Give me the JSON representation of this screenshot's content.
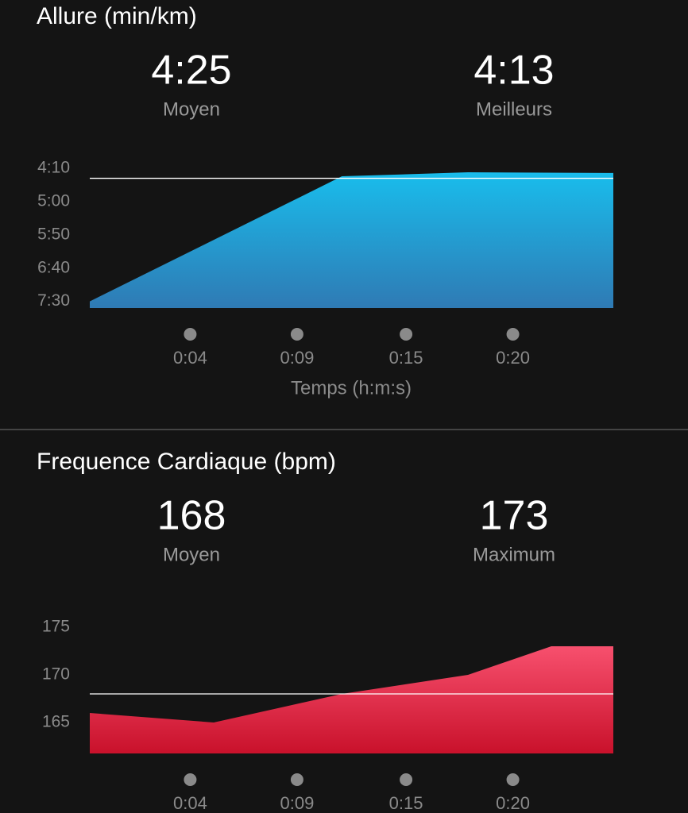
{
  "chart_data": [
    {
      "type": "area",
      "title": "Allure (min/km)",
      "stats": [
        {
          "value": "4:25",
          "label": "Moyen"
        },
        {
          "value": "4:13",
          "label": "Meilleurs"
        }
      ],
      "x": [
        0,
        11.8,
        17.7,
        24.5
      ],
      "values": [
        450,
        262,
        256,
        257
      ],
      "reference_line": 265,
      "gradient": [
        "#19bdec",
        "#2f7ab4"
      ],
      "xlim": [
        0,
        24.5
      ],
      "xticks": [
        {
          "value": 4.7,
          "label": "0:04"
        },
        {
          "value": 9.7,
          "label": "0:09"
        },
        {
          "value": 14.8,
          "label": "0:15"
        },
        {
          "value": 19.8,
          "label": "0:20"
        }
      ],
      "xlabel": "Temps (h:m:s)",
      "ylim": [
        460,
        250
      ],
      "yticks": [
        {
          "value": 250,
          "label": "4:10"
        },
        {
          "value": 300,
          "label": "5:00"
        },
        {
          "value": 350,
          "label": "5:50"
        },
        {
          "value": 400,
          "label": "6:40"
        },
        {
          "value": 450,
          "label": "7:30"
        }
      ]
    },
    {
      "type": "area",
      "title": "Frequence Cardiaque (bpm)",
      "stats": [
        {
          "value": "168",
          "label": "Moyen"
        },
        {
          "value": "173",
          "label": "Maximum"
        }
      ],
      "x": [
        0,
        5.8,
        11.8,
        17.7,
        21.6,
        24.5
      ],
      "values": [
        166,
        165,
        168,
        170,
        173,
        173
      ],
      "reference_line": 168,
      "gradient": [
        "#f7506e",
        "#c9112b"
      ],
      "xlim": [
        0,
        24.5
      ],
      "xticks": [
        {
          "value": 4.7,
          "label": "0:04"
        },
        {
          "value": 9.7,
          "label": "0:09"
        },
        {
          "value": 14.8,
          "label": "0:15"
        },
        {
          "value": 19.8,
          "label": "0:20"
        }
      ],
      "ylim": [
        161.75,
        175
      ],
      "yticks": [
        165,
        170,
        175
      ]
    }
  ]
}
